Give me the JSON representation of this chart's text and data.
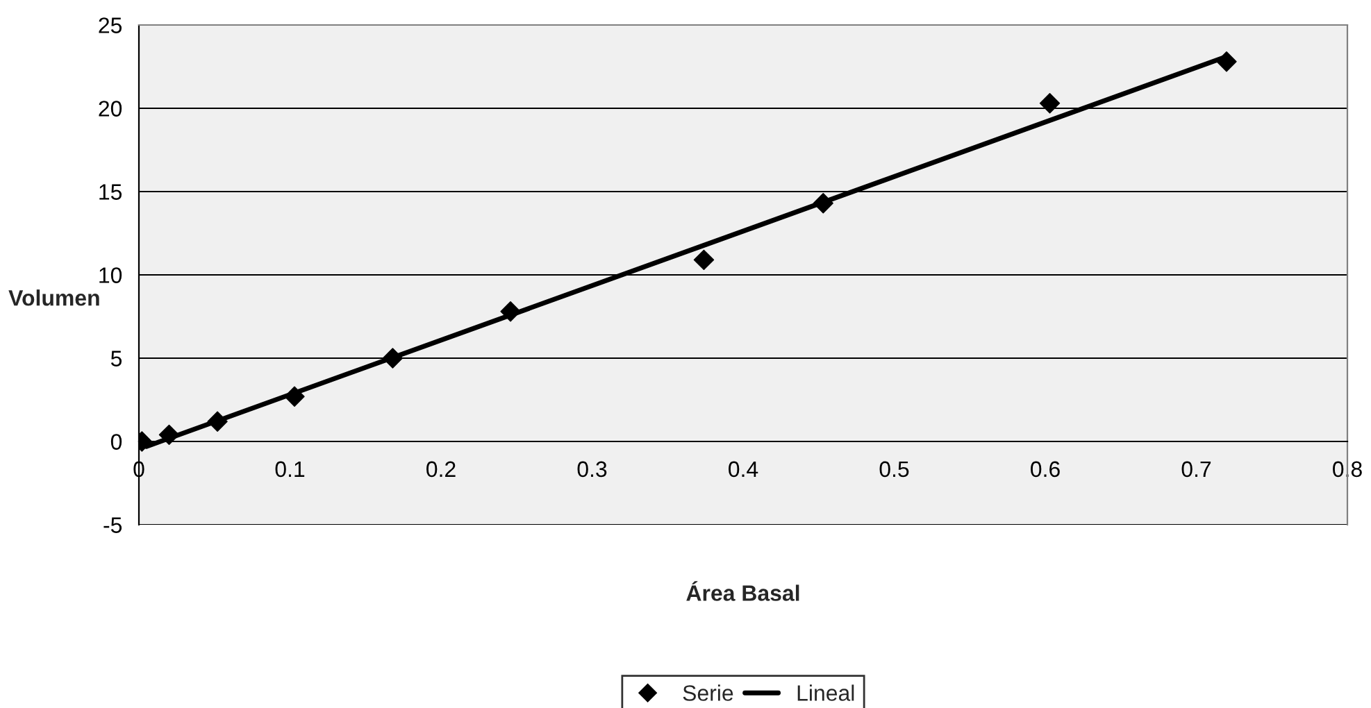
{
  "chart_data": {
    "type": "scatter",
    "xlabel": "Área Basal",
    "ylabel": "Volumen",
    "series": [
      {
        "name": "Serie",
        "marker": "diamond",
        "color": "#000000",
        "x": [
          0.002,
          0.02,
          0.052,
          0.103,
          0.168,
          0.246,
          0.374,
          0.453,
          0.603,
          0.72
        ],
        "values": [
          0.0,
          0.4,
          1.2,
          2.7,
          5.0,
          7.8,
          10.9,
          14.3,
          20.3,
          22.8
        ]
      },
      {
        "name": "Lineal",
        "type": "line",
        "marker": "none",
        "line_style": "solid",
        "color": "#000000",
        "x": [
          0.005,
          0.72
        ],
        "values": [
          -0.3,
          23.1
        ]
      }
    ],
    "xlim": [
      0,
      0.8
    ],
    "xticks": [
      0,
      0.1,
      0.2,
      0.3,
      0.4,
      0.5,
      0.6,
      0.7,
      0.8
    ],
    "ylim": [
      -5,
      25
    ],
    "yticks": [
      -5,
      0,
      5,
      10,
      15,
      20,
      25
    ],
    "grid": "y",
    "legend": "bottom"
  }
}
